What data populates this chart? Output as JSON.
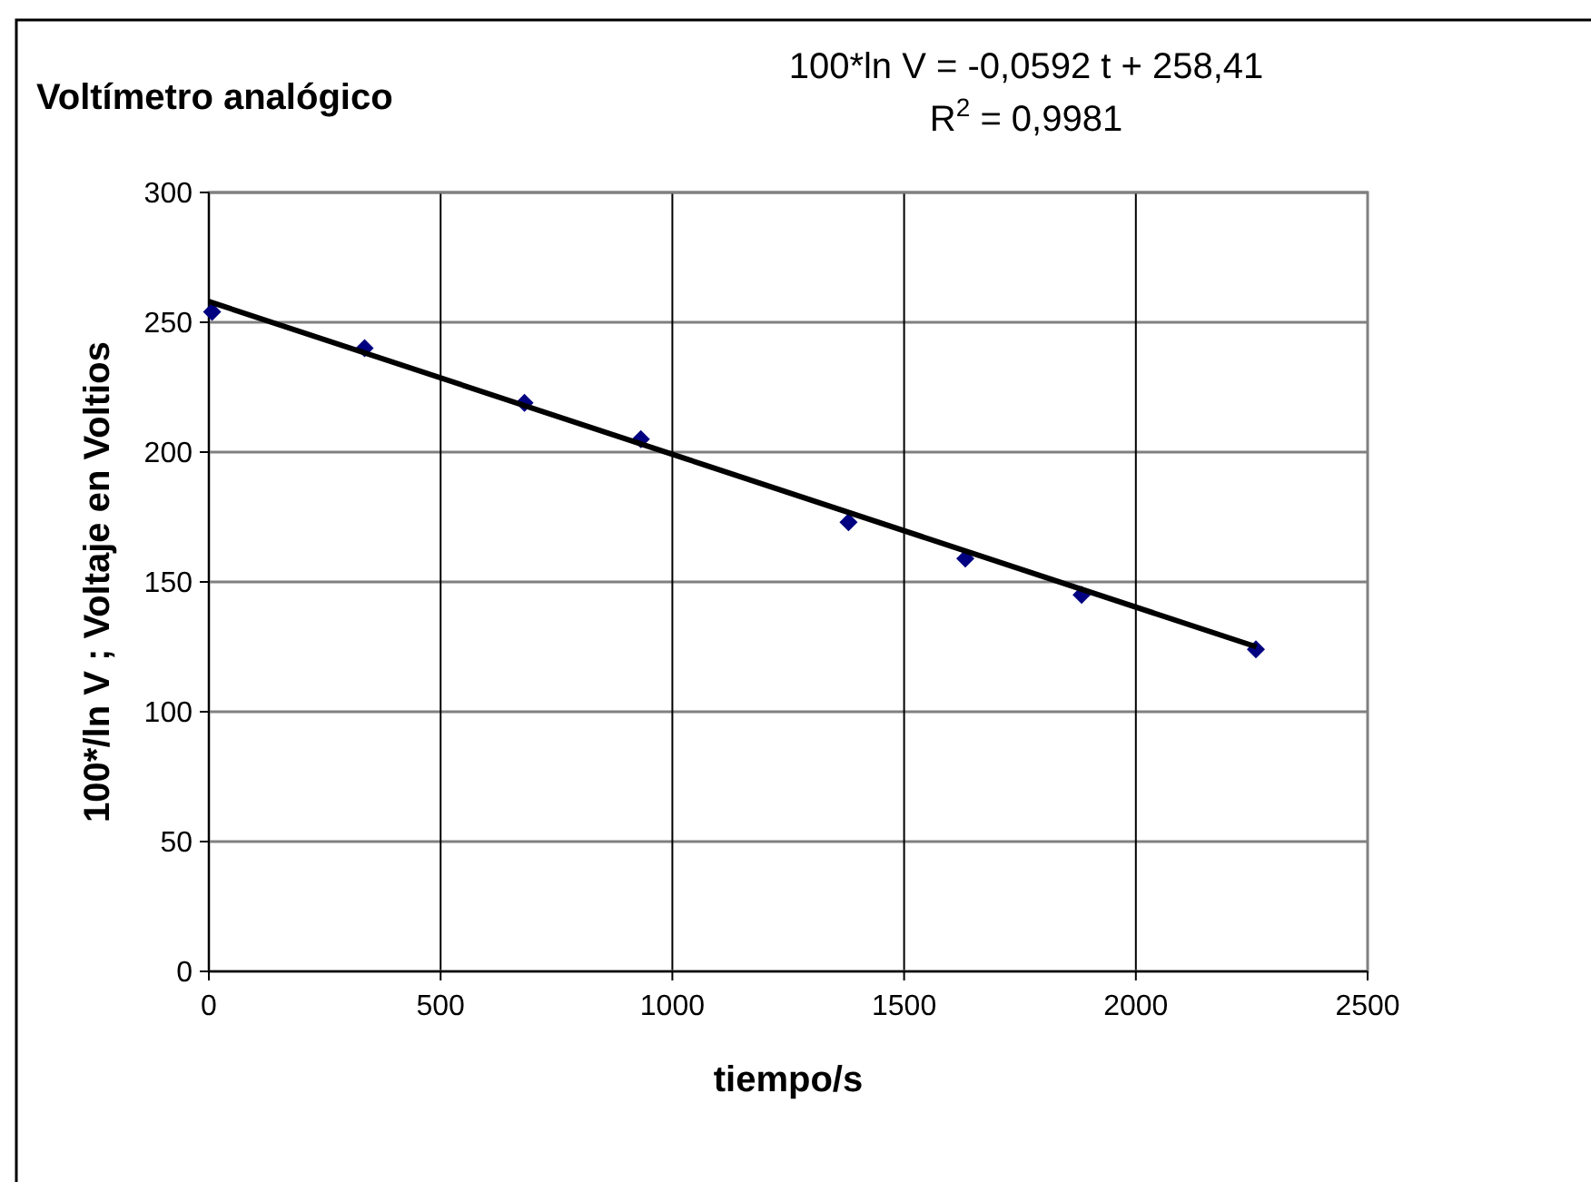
{
  "chart_data": {
    "type": "scatter",
    "title": "Voltímetro analógico",
    "xlabel": "tiempo/s",
    "ylabel": "100*/ln V ;  Voltaje en Voltios",
    "annotations": [
      "100*ln V = -0,0592 t + 258,41",
      "R$^{2}$ = 0,9981"
    ],
    "xlim": [
      0,
      2500
    ],
    "xticks": [
      0,
      500,
      1000,
      1500,
      2000,
      2500
    ],
    "ylim": [
      0,
      300
    ],
    "yticks": [
      0,
      50,
      100,
      150,
      200,
      250,
      300
    ],
    "grid": true,
    "marker": "diamond",
    "series": [
      {
        "color": "#000080",
        "x": [
          7,
          336,
          681,
          932,
          1380,
          1632,
          1883,
          2259
        ],
        "values": [
          254,
          240,
          219,
          205,
          173,
          159,
          145,
          124
        ]
      },
      {
        "type": "line",
        "color": "#000000",
        "marker": "none",
        "x": [
          0,
          2260
        ],
        "values": [
          258,
          125
        ]
      }
    ]
  }
}
